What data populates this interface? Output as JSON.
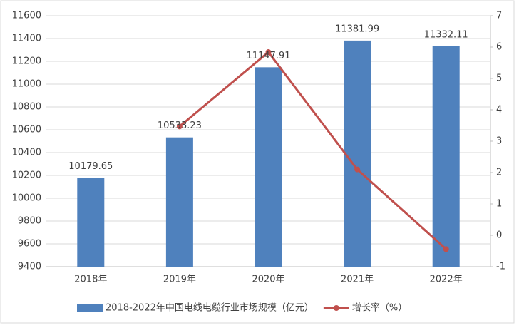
{
  "chart_data": {
    "type": "combo",
    "categories": [
      "2018年",
      "2019年",
      "2020年",
      "2021年",
      "2022年"
    ],
    "series": [
      {
        "name": "2018-2022年中国电线电缆行业市场规模（亿元）",
        "type": "bar",
        "color": "#4f81bd",
        "values": [
          10179.65,
          10533.23,
          11147.91,
          11381.99,
          11332.11
        ]
      },
      {
        "name": "增长率（%）",
        "type": "line",
        "axis": "y2",
        "color": "#c0504d",
        "values": [
          null,
          3.47,
          5.84,
          2.1,
          -0.44
        ]
      }
    ],
    "ylim": [
      9400,
      11600
    ],
    "yticks": [
      9400,
      9600,
      9800,
      10000,
      10200,
      10400,
      10600,
      10800,
      11000,
      11200,
      11400,
      11600
    ],
    "y2lim": [
      -1,
      7
    ],
    "y2ticks": [
      -1,
      0,
      1,
      2,
      3,
      4,
      5,
      6,
      7
    ],
    "grid": true,
    "legend": "bottom"
  }
}
